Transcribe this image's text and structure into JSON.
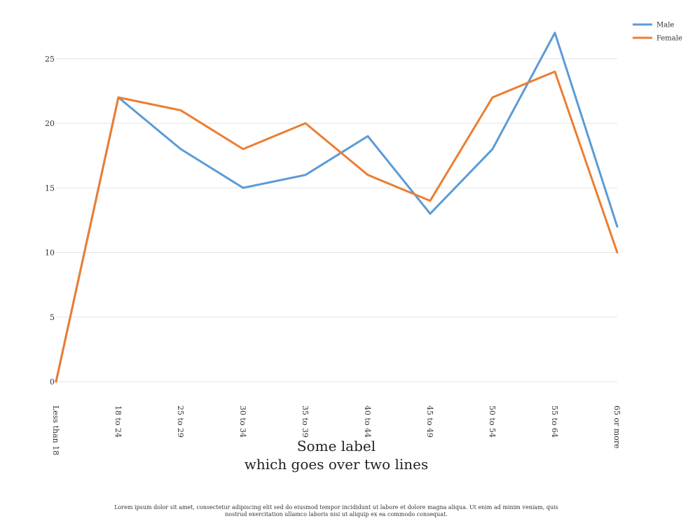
{
  "chart_data": {
    "type": "line",
    "categories": [
      "Less than 18",
      "18 to 24",
      "25 to 29",
      "30 to 34",
      "35 to 39",
      "40 to 44",
      "45 to 49",
      "50 to 54",
      "55 to 64",
      "65 or more"
    ],
    "series": [
      {
        "name": "Male",
        "color": "#5b9bd5",
        "values": [
          0,
          22,
          18,
          15,
          16,
          19,
          13,
          18,
          27,
          12
        ]
      },
      {
        "name": "Female",
        "color": "#ed7d31",
        "values": [
          0,
          22,
          21,
          18,
          20,
          16,
          14,
          22,
          24,
          10
        ]
      }
    ],
    "yticks": [
      0,
      5,
      10,
      15,
      20,
      25
    ],
    "ylim": [
      0,
      27
    ],
    "xlabel": "Some label\nwhich goes over two lines",
    "ylabel": "",
    "title": "",
    "grid": true,
    "legend_position": "top-right",
    "footnote": "Lorem ipsum dolor sit amet, consectetur adipiscing elit sed do eiusmod tempor incididunt ut labore et dolore magna aliqua. Ut enim ad minim veniam, quis nostrud exercitation ullamco laboris nisi ut aliquip ex ea commodo consequat."
  }
}
